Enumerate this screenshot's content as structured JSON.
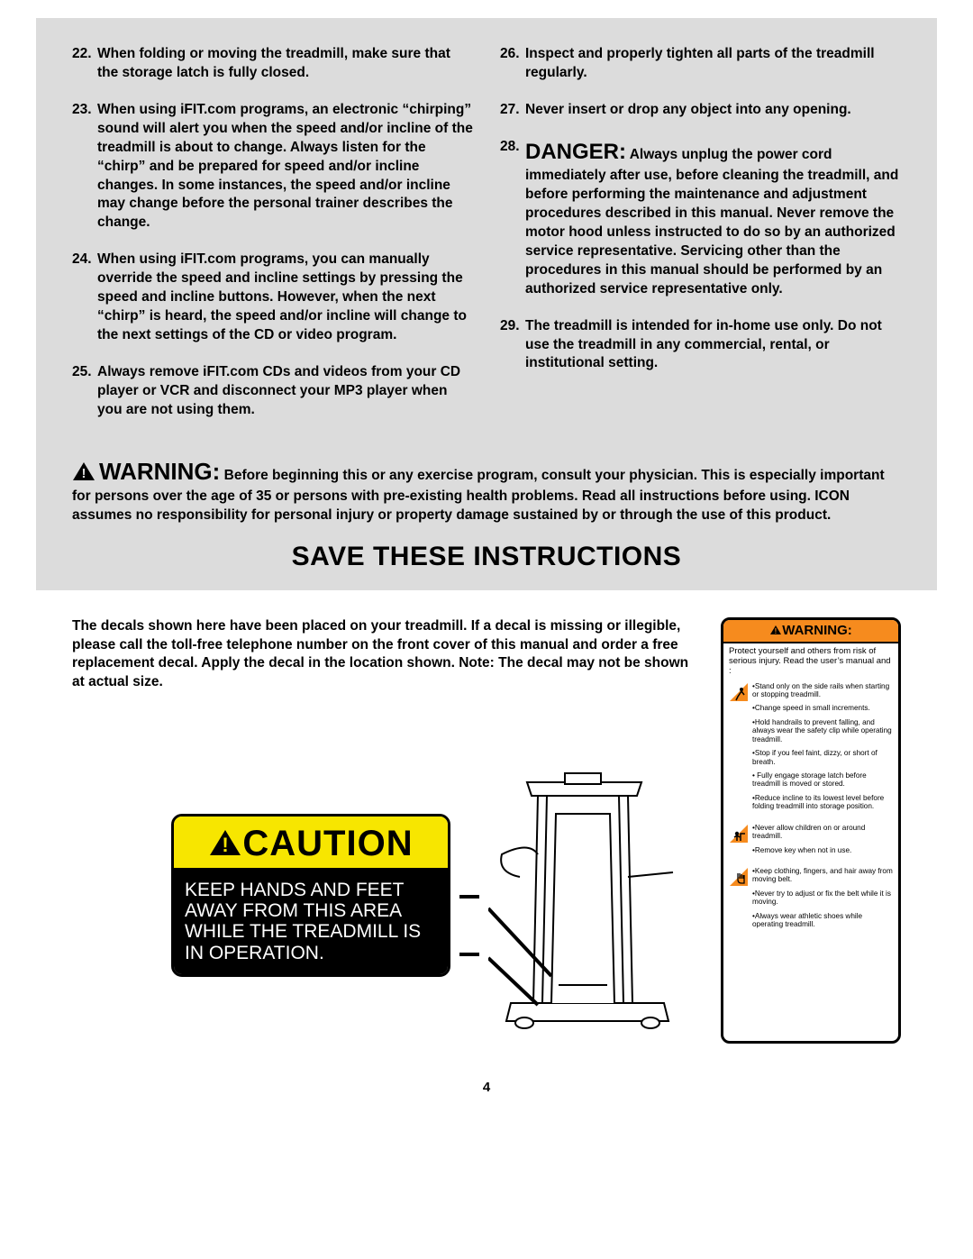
{
  "instructions": {
    "left": [
      {
        "n": "22.",
        "t": "When folding or moving the treadmill, make sure that the storage latch is fully closed."
      },
      {
        "n": "23.",
        "t": "When using iFIT.com programs, an electronic “chirping” sound will alert you when the speed and/or incline of the treadmill is about to change. Always listen for the “chirp” and be prepared for speed and/or incline changes. In some instances, the speed and/or incline may change before the personal trainer describes the change."
      },
      {
        "n": "24.",
        "t": "When using iFIT.com programs, you can manually override the speed and incline settings by pressing the speed and incline buttons. However, when the next “chirp” is heard, the speed and/or incline will change to the next settings of the CD or video program."
      },
      {
        "n": "25.",
        "t": "Always remove iFIT.com CDs and videos from your CD player or VCR and disconnect your MP3 player when you are not using them."
      }
    ],
    "right": [
      {
        "n": "26.",
        "t": "Inspect and properly tighten all parts of the treadmill regularly."
      },
      {
        "n": "27.",
        "t": "Never insert or drop any object into any opening."
      },
      {
        "n": "28.",
        "danger": "DANGER:",
        "t": " Always unplug the power cord immediately after use, before cleaning the treadmill, and before performing the maintenance and adjustment procedures described in this manual. Never remove the motor hood unless instructed to do so by an authorized service representative. Servicing other than the procedures in this manual should be performed by an authorized service representative only."
      },
      {
        "n": "29.",
        "t": "The treadmill is intended for in-home use only. Do not use the treadmill in any commercial, rental, or institutional setting."
      }
    ]
  },
  "warning": {
    "label": "WARNING:",
    "text": " Before beginning this or any exercise program, consult your physician. This is especially important for persons over the age of 35 or persons with pre-existing health problems. Read all instructions before using. ICON assumes no responsibility for personal injury or property damage sustained by or through the use of this product."
  },
  "saveHeading": "SAVE THESE INSTRUCTIONS",
  "decalIntro": "The decals shown here have been placed on your treadmill. If a decal is missing or illegible, please call the toll-free telephone number on the front cover of this manual and order a free replacement decal. Apply the decal in the location shown. Note: The decal may not be shown at actual size.",
  "caution": {
    "label": "CAUTION",
    "body": "KEEP HANDS AND FEET AWAY FROM THIS AREA WHILE THE TREADMILL IS IN OPERATION."
  },
  "smallWarning": {
    "header": "WARNING:",
    "intro": "Protect yourself and others from risk of serious injury.  Read the user’s manual and :",
    "groups": [
      {
        "icon": "slip",
        "bullets": [
          "•Stand only on the side rails when starting or stopping treadmill.",
          "•Change speed in small increments.",
          "•Hold handrails to prevent falling, and always wear the safety clip while operating treadmill.",
          "•Stop if you feel faint, dizzy, or short of breath.",
          "• Fully engage storage latch  before treadmill  is moved or stored.",
          "•Reduce incline to its lowest level before folding treadmill into storage position."
        ]
      },
      {
        "icon": "child",
        "bullets": [
          "•Never allow children on or around treadmill.",
          "•Remove key when not in use."
        ]
      },
      {
        "icon": "hand",
        "bullets": [
          "•Keep clothing, fingers, and hair away from moving belt.",
          "•Never try to adjust or fix the belt while it is moving.",
          "•Always wear athletic shoes while operating treadmill."
        ]
      }
    ]
  },
  "pageNumber": "4"
}
